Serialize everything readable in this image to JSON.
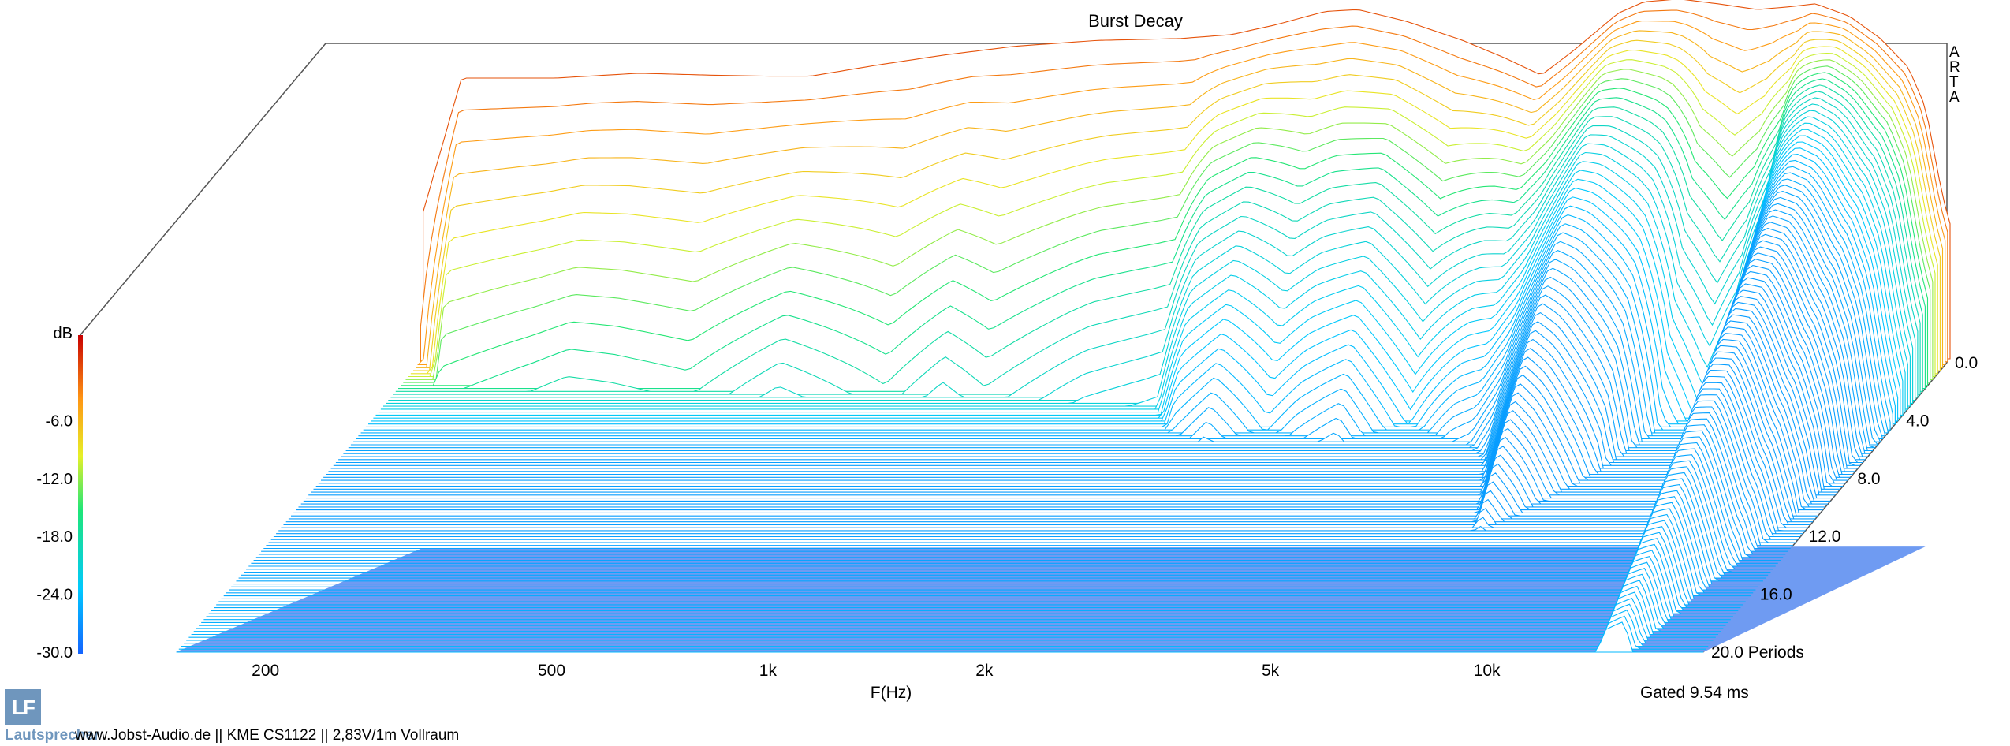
{
  "chart_data": {
    "type": "waterfall",
    "title": "Burst Decay",
    "brand_letters": [
      "A",
      "R",
      "T",
      "A"
    ],
    "colorbar": {
      "unit": "dB",
      "ticks": [
        "-6.0",
        "-12.0",
        "-18.0",
        "-24.0",
        "-30.0"
      ],
      "range_db": [
        -30,
        0
      ]
    },
    "x_axis": {
      "label": "F(Hz)",
      "scale": "log",
      "ticks": [
        {
          "label": "200",
          "value": 200
        },
        {
          "label": "500",
          "value": 500
        },
        {
          "label": "1k",
          "value": 1000
        },
        {
          "label": "2k",
          "value": 2000
        },
        {
          "label": "5k",
          "value": 5000
        },
        {
          "label": "10k",
          "value": 10000
        }
      ],
      "range_hz": [
        110,
        20000
      ]
    },
    "z_axis": {
      "unit": "Periods",
      "ticks": [
        "0.0",
        "4.0",
        "8.0",
        "12.0",
        "16.0",
        "20.0 Periods"
      ],
      "range_periods": [
        0,
        20
      ]
    },
    "gated_label": "Gated 9.54 ms",
    "front_response_db": [
      {
        "hz": 150,
        "db": -15.0
      },
      {
        "hz": 170,
        "db": -0.9
      },
      {
        "hz": 230,
        "db": -0.9
      },
      {
        "hz": 300,
        "db": -0.4
      },
      {
        "hz": 380,
        "db": -0.6
      },
      {
        "hz": 450,
        "db": -0.7
      },
      {
        "hz": 520,
        "db": -0.7
      },
      {
        "hz": 650,
        "db": 0.5
      },
      {
        "hz": 800,
        "db": 1.5
      },
      {
        "hz": 1000,
        "db": 2.4
      },
      {
        "hz": 1300,
        "db": 3.0
      },
      {
        "hz": 1700,
        "db": 3.2
      },
      {
        "hz": 2000,
        "db": 3.6
      },
      {
        "hz": 2300,
        "db": 4.6
      },
      {
        "hz": 2700,
        "db": 6.0
      },
      {
        "hz": 3000,
        "db": 6.2
      },
      {
        "hz": 3500,
        "db": 5.0
      },
      {
        "hz": 4200,
        "db": 3.0
      },
      {
        "hz": 4800,
        "db": 1.2
      },
      {
        "hz": 5400,
        "db": -0.6
      },
      {
        "hz": 6000,
        "db": 2.0
      },
      {
        "hz": 6900,
        "db": 5.8
      },
      {
        "hz": 7500,
        "db": 7.0
      },
      {
        "hz": 8400,
        "db": 7.3
      },
      {
        "hz": 9500,
        "db": 6.8
      },
      {
        "hz": 10800,
        "db": 6.2
      },
      {
        "hz": 12000,
        "db": 6.5
      },
      {
        "hz": 13000,
        "db": 6.8
      },
      {
        "hz": 14500,
        "db": 5.5
      },
      {
        "hz": 16000,
        "db": 3.2
      },
      {
        "hz": 17500,
        "db": 0.2
      },
      {
        "hz": 18500,
        "db": -4.0
      },
      {
        "hz": 19500,
        "db": -13.0
      },
      {
        "hz": 20000,
        "db": -16.0
      }
    ],
    "decay_periods": [
      {
        "hz": 150,
        "p": 0.5
      },
      {
        "hz": 170,
        "p": 2.0
      },
      {
        "hz": 260,
        "p": 2.4
      },
      {
        "hz": 380,
        "p": 2.2
      },
      {
        "hz": 520,
        "p": 2.8
      },
      {
        "hz": 720,
        "p": 2.2
      },
      {
        "hz": 880,
        "p": 2.6
      },
      {
        "hz": 1000,
        "p": 2.3
      },
      {
        "hz": 1400,
        "p": 2.8
      },
      {
        "hz": 1800,
        "p": 3.0
      },
      {
        "hz": 2000,
        "p": 4.5
      },
      {
        "hz": 2300,
        "p": 5.0
      },
      {
        "hz": 2700,
        "p": 4.0
      },
      {
        "hz": 3500,
        "p": 5.0
      },
      {
        "hz": 4200,
        "p": 4.0
      },
      {
        "hz": 5000,
        "p": 5.5
      },
      {
        "hz": 5900,
        "p": 6.5
      },
      {
        "hz": 6400,
        "p": 8.0
      },
      {
        "hz": 7000,
        "p": 10.0
      },
      {
        "hz": 7900,
        "p": 8.0
      },
      {
        "hz": 8700,
        "p": 6.5
      },
      {
        "hz": 9500,
        "p": 4.0
      },
      {
        "hz": 10500,
        "p": 3.2
      },
      {
        "hz": 11500,
        "p": 4.0
      },
      {
        "hz": 12500,
        "p": 6.0
      },
      {
        "hz": 13500,
        "p": 12.0
      },
      {
        "hz": 14500,
        "p": 18.0
      },
      {
        "hz": 15500,
        "p": 19.5
      },
      {
        "hz": 17000,
        "p": 15.0
      },
      {
        "hz": 18500,
        "p": 13.0
      },
      {
        "hz": 20000,
        "p": 11.0
      }
    ],
    "slices": 100
  },
  "footer": {
    "site_text": "www.Jobst-Audio.de  ||  KME CS1122  ||  2,83V/1m Vollraum",
    "logo_text": "Lautsprecher"
  }
}
